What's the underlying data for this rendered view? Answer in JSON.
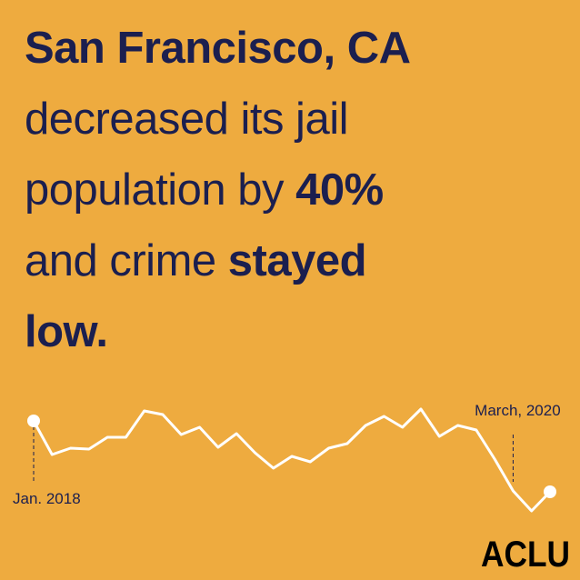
{
  "chart_data": {
    "type": "line",
    "title": [
      "San Francisco, CA",
      "decreased its jail",
      "population by ",
      "40%",
      "and crime ",
      "stayed",
      "low."
    ],
    "categories": [
      "Jan. 2018",
      null,
      null,
      null,
      null,
      null,
      null,
      null,
      null,
      null,
      null,
      null,
      null,
      null,
      null,
      null,
      null,
      null,
      null,
      null,
      null,
      null,
      null,
      null,
      null,
      null,
      "March, 2020",
      null,
      null
    ],
    "values": [
      107,
      70,
      77,
      76,
      89,
      89,
      118,
      114,
      92,
      100,
      78,
      93,
      72,
      55,
      68,
      62,
      77,
      82,
      102,
      112,
      100,
      120,
      90,
      102,
      97,
      65,
      30,
      8,
      29
    ],
    "color": "#ffffff"
  },
  "logo": "ACLU"
}
